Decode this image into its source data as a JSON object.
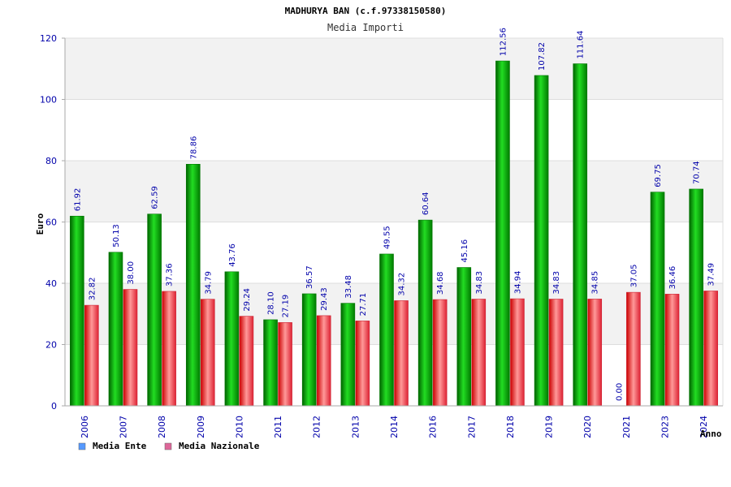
{
  "chart_data": {
    "type": "bar",
    "title": "MADHURYA BAN (c.f.97338150580)",
    "subtitle": "Media Importi",
    "ylabel": "Euro",
    "xlabel": "Anno",
    "ylim": [
      0,
      120
    ],
    "yticks": [
      0,
      20,
      40,
      60,
      80,
      100,
      120
    ],
    "grid": true,
    "legend_position": "bottom-left",
    "categories": [
      "2006",
      "2007",
      "2008",
      "2009",
      "2010",
      "2011",
      "2012",
      "2013",
      "2014",
      "2016",
      "2017",
      "2018",
      "2019",
      "2020",
      "2021",
      "2023",
      "2024"
    ],
    "series": [
      {
        "name": "Media Ente",
        "color": "#00aa00",
        "legend_color": "#5599ff",
        "values": [
          61.92,
          50.13,
          62.59,
          78.86,
          43.76,
          28.1,
          36.57,
          33.48,
          49.55,
          60.64,
          45.16,
          112.56,
          107.82,
          111.64,
          0.0,
          69.75,
          70.74
        ],
        "labels": [
          "61.92",
          "50.13",
          "62.59",
          "78.86",
          "43.76",
          "28.10",
          "36.57",
          "33.48",
          "49.55",
          "60.64",
          "45.16",
          "112.56",
          "107.82",
          "111.64",
          "0.00",
          "69.75",
          "70.74"
        ]
      },
      {
        "name": "Media Nazionale",
        "color": "#ee3344",
        "legend_color": "#dd6699",
        "values": [
          32.82,
          38.0,
          37.36,
          34.79,
          29.24,
          27.19,
          29.43,
          27.71,
          34.32,
          34.68,
          34.83,
          34.94,
          34.83,
          34.85,
          37.05,
          36.46,
          37.49
        ],
        "labels": [
          "32.82",
          "38.00",
          "37.36",
          "34.79",
          "29.24",
          "27.19",
          "29.43",
          "27.71",
          "34.32",
          "34.68",
          "34.83",
          "34.94",
          "34.83",
          "34.85",
          "37.05",
          "36.46",
          "37.49"
        ]
      }
    ]
  }
}
